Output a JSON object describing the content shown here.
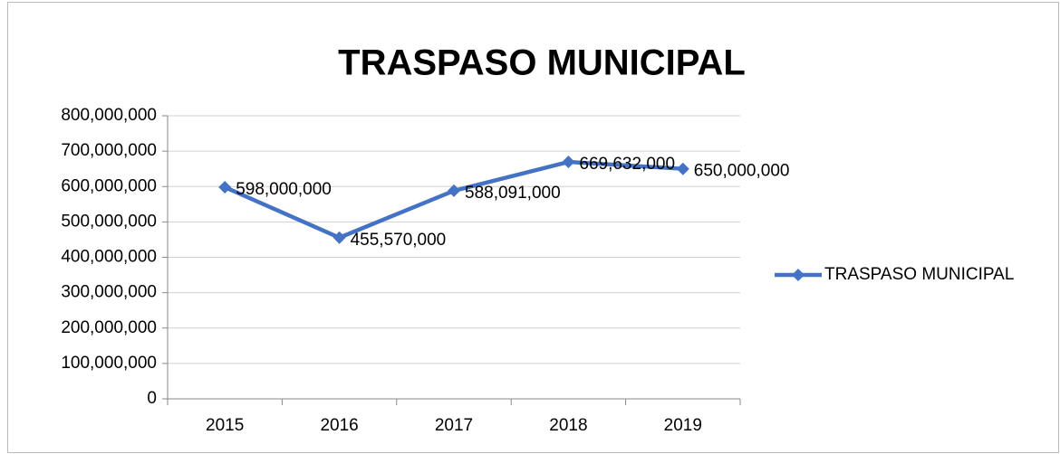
{
  "chart_data": {
    "type": "line",
    "title": "TRASPASO MUNICIPAL",
    "categories": [
      "2015",
      "2016",
      "2017",
      "2018",
      "2019"
    ],
    "series": [
      {
        "name": "TRASPASO MUNICIPAL",
        "color": "#4472c4",
        "values": [
          598000000,
          455570000,
          588091000,
          669632000,
          650000000
        ],
        "value_labels": [
          "598,000,000",
          "455,570,000",
          "588,091,000",
          "669,632,000",
          "650,000,000"
        ]
      }
    ],
    "ylim": [
      0,
      800000000
    ],
    "yticks": [
      0,
      {
        "value": 100000000,
        "label": "100,000,000"
      },
      {
        "value": 200000000,
        "label": "200,000,000"
      },
      {
        "value": 300000000,
        "label": "300,000,000"
      },
      {
        "value": 400000000,
        "label": "400,000,000"
      },
      {
        "value": 500000000,
        "label": "500,000,000"
      },
      {
        "value": 600000000,
        "label": "600,000,000"
      },
      {
        "value": 700000000,
        "label": "700,000,000"
      },
      {
        "value": 800000000,
        "label": "800,000,000"
      }
    ],
    "grid": true,
    "legend": "right"
  }
}
